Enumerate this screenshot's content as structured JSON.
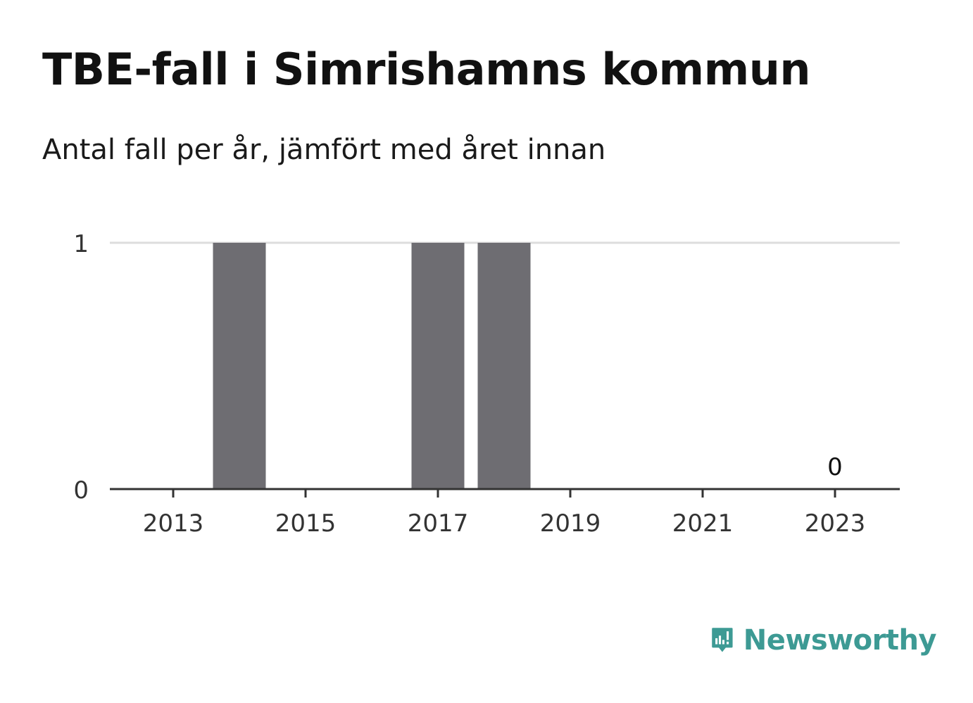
{
  "title": "TBE-fall i Simrishamns kommun",
  "subtitle": "Antal fall per år, jämfört med året innan",
  "brand": {
    "name": "Newsworthy",
    "color": "#3d9a94",
    "icon": "newsworthy-logo-icon"
  },
  "colors": {
    "bar": "#6e6d72",
    "grid": "#dddddd",
    "axis": "#333333"
  },
  "chart_data": {
    "type": "bar",
    "categories": [
      "2013",
      "2014",
      "2015",
      "2016",
      "2017",
      "2018",
      "2019",
      "2020",
      "2021",
      "2022",
      "2023"
    ],
    "values": [
      0,
      1,
      0,
      0,
      1,
      1,
      0,
      0,
      0,
      0,
      0
    ],
    "x_tick_labels": [
      "2013",
      "2015",
      "2017",
      "2019",
      "2021",
      "2023"
    ],
    "y_ticks": [
      "0",
      "1"
    ],
    "ylim": [
      0,
      1
    ],
    "grid": true,
    "data_labels": [
      {
        "category": "2023",
        "text": "0"
      }
    ],
    "xlabel": "",
    "ylabel": ""
  }
}
